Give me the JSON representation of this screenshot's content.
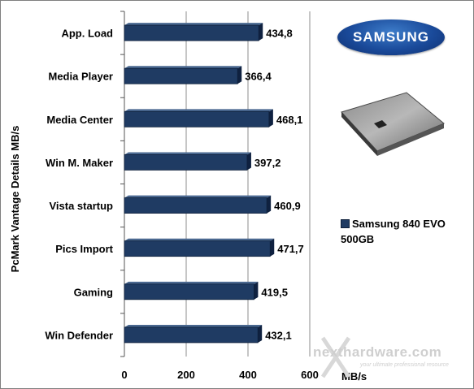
{
  "chart_data": {
    "type": "bar",
    "orientation": "horizontal",
    "categories": [
      "App. Load",
      "Media Player",
      "Media Center",
      "Win M. Maker",
      "Vista startup",
      "Pics Import",
      "Gaming",
      "Win Defender"
    ],
    "series": [
      {
        "name": "Samsung 840 EVO 500GB",
        "values": [
          434.8,
          366.4,
          468.1,
          397.2,
          460.9,
          471.7,
          419.5,
          432.1
        ]
      }
    ],
    "value_labels": [
      "434,8",
      "366,4",
      "468,1",
      "397,2",
      "460,9",
      "471,7",
      "419,5",
      "432,1"
    ],
    "ylabel": "PcMark Vantage Details MB/s",
    "xlabel": "MB/s",
    "xlim": [
      0,
      600
    ],
    "xticks": [
      0,
      200,
      400,
      600
    ],
    "grid": true,
    "legend": "right",
    "bar_color": "#1f3b63"
  },
  "logo_text": "SAMSUNG",
  "legend": {
    "line1": "Samsung 840 EVO",
    "line2": "500GB"
  },
  "watermark": {
    "main": "nexthardware.com",
    "tagline": "your ultimate professional resource"
  }
}
